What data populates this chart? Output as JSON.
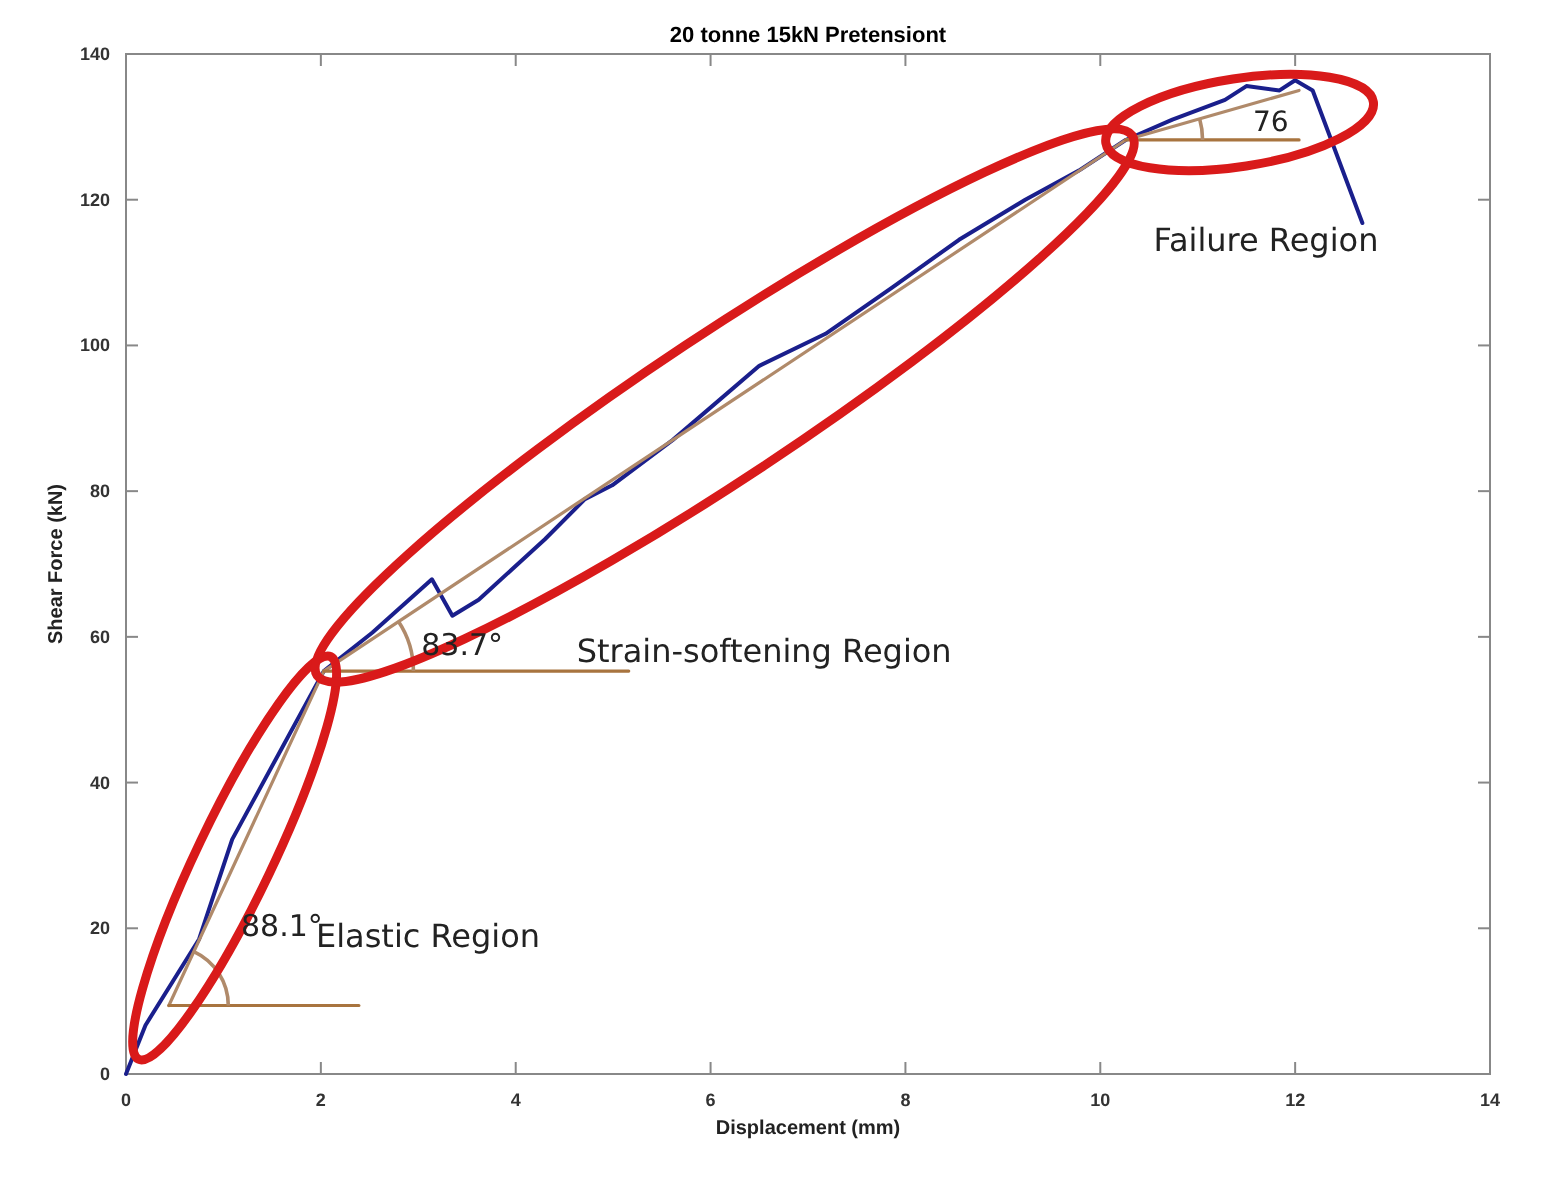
{
  "chart_data": {
    "type": "line",
    "title": "20 tonne 15kN Pretensiont",
    "xlabel": "Displacement (mm)",
    "ylabel": "Shear Force (kN)",
    "xlim": [
      0,
      14
    ],
    "xticks": [
      0,
      2,
      4,
      6,
      8,
      10,
      12,
      14
    ],
    "ylim": [
      0,
      140
    ],
    "yticks": [
      0,
      20,
      40,
      60,
      80,
      100,
      120,
      140
    ],
    "grid": false,
    "marker": "none",
    "line_style": "solid",
    "series": [
      {
        "color": "#1a1f8c",
        "x": [
          0,
          0.2,
          0.75,
          1.09,
          1.57,
          2.03,
          2.53,
          3.14,
          3.35,
          3.62,
          4.3,
          4.71,
          4.99,
          5.61,
          6.5,
          7.18,
          7.87,
          8.55,
          9.23,
          9.78,
          10.26,
          10.74,
          11.28,
          11.5,
          11.84,
          12.0,
          12.18,
          12.69
        ],
        "values": [
          0,
          6.7,
          18.5,
          32.2,
          44,
          55.3,
          60.6,
          67.9,
          62.9,
          65.1,
          73.4,
          78.9,
          80.8,
          87,
          97.2,
          101.6,
          108,
          114.5,
          120,
          124,
          128.2,
          131,
          133.7,
          135.6,
          135,
          136.4,
          135,
          116.8
        ]
      },
      {
        "color": "#b08a6a",
        "x": [
          0.44,
          2.03,
          10.26,
          12.04
        ],
        "values": [
          9.4,
          55.3,
          128.2,
          135
        ]
      },
      {
        "color": "#a8743f",
        "x": [
          0.44,
          2.39
        ],
        "values": [
          9.4,
          9.4
        ]
      },
      {
        "color": "#a8743f",
        "x": [
          2.03,
          5.16
        ],
        "values": [
          55.3,
          55.3
        ]
      },
      {
        "color": "#a8743f",
        "x": [
          10.26,
          12.04
        ],
        "values": [
          128.2,
          128.2
        ]
      }
    ],
    "annotations": [
      "88.1°",
      "Elastic Region",
      "83.7°",
      "Strain-softening Region",
      "76",
      "Failure Region"
    ]
  }
}
